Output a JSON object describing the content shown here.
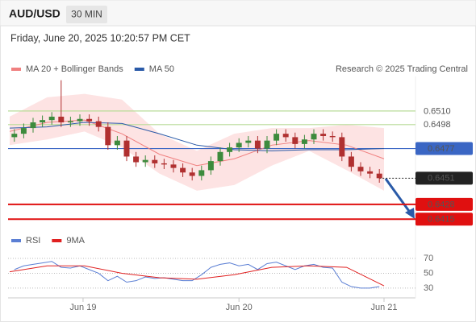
{
  "header": {
    "symbol": "AUD/USD",
    "interval": "30 MIN",
    "timestamp": "Friday, June 20, 2025 10:20:57 PM CET"
  },
  "chart_data": [
    {
      "type": "candlestick",
      "credit": "Research © 2025 Trading Central",
      "xlim": [
        0,
        40
      ],
      "ylim": [
        0.6406,
        0.6541
      ],
      "up_color": "#3d8b3d",
      "down_color": "#b03030",
      "candles": {
        "open": [
          0.6487,
          0.649,
          0.6495,
          0.65,
          0.6502,
          0.6505,
          0.65,
          0.6501,
          0.6503,
          0.6501,
          0.6496,
          0.648,
          0.6484,
          0.647,
          0.6465,
          0.6467,
          0.6464,
          0.6463,
          0.646,
          0.6456,
          0.6453,
          0.6458,
          0.6466,
          0.6474,
          0.6478,
          0.6482,
          0.6484,
          0.6477,
          0.6484,
          0.649,
          0.6487,
          0.6481,
          0.6485,
          0.649,
          0.6488,
          0.6487,
          0.647,
          0.6461,
          0.6457,
          0.6455
        ],
        "high": [
          0.6494,
          0.6499,
          0.6504,
          0.6506,
          0.6509,
          0.6537,
          0.6505,
          0.6507,
          0.6507,
          0.6505,
          0.65,
          0.6488,
          0.6488,
          0.6474,
          0.6471,
          0.6471,
          0.6468,
          0.6467,
          0.6464,
          0.646,
          0.6462,
          0.647,
          0.6478,
          0.6482,
          0.6486,
          0.6488,
          0.6488,
          0.6488,
          0.6494,
          0.6494,
          0.6491,
          0.6489,
          0.6494,
          0.6494,
          0.6492,
          0.6491,
          0.6474,
          0.6465,
          0.6461,
          0.6459
        ],
        "low": [
          0.6483,
          0.6486,
          0.6491,
          0.6496,
          0.6498,
          0.6496,
          0.6496,
          0.6497,
          0.6497,
          0.6492,
          0.6476,
          0.6476,
          0.6466,
          0.6461,
          0.6461,
          0.646,
          0.6459,
          0.6456,
          0.6452,
          0.6449,
          0.6449,
          0.6454,
          0.6462,
          0.647,
          0.6474,
          0.6478,
          0.6473,
          0.6473,
          0.648,
          0.6483,
          0.6477,
          0.6477,
          0.6481,
          0.6484,
          0.6483,
          0.6466,
          0.6457,
          0.6453,
          0.6451,
          0.6447
        ],
        "close": [
          0.649,
          0.6495,
          0.65,
          0.6502,
          0.6505,
          0.65,
          0.6501,
          0.6503,
          0.6501,
          0.6496,
          0.648,
          0.6484,
          0.647,
          0.6465,
          0.6467,
          0.6464,
          0.6463,
          0.646,
          0.6456,
          0.6453,
          0.6458,
          0.6466,
          0.6474,
          0.6478,
          0.6482,
          0.6484,
          0.6477,
          0.6484,
          0.649,
          0.6487,
          0.6481,
          0.6485,
          0.649,
          0.6488,
          0.6487,
          0.647,
          0.6461,
          0.6457,
          0.6455,
          0.6451
        ]
      },
      "line_x": [
        0,
        4,
        8,
        12,
        16,
        20,
        24,
        28,
        32,
        36,
        40
      ],
      "band": {
        "color": "#fde3e3",
        "upper": [
          0.6505,
          0.6522,
          0.6525,
          0.652,
          0.649,
          0.6475,
          0.649,
          0.6495,
          0.6495,
          0.6498,
          0.6495
        ],
        "lower": [
          0.648,
          0.6485,
          0.6492,
          0.6478,
          0.6455,
          0.644,
          0.6445,
          0.6462,
          0.6475,
          0.6458,
          0.644
        ]
      },
      "series": [
        {
          "name": "MA 20 + Bollinger Bands",
          "color": "#f08080",
          "values": [
            0.6492,
            0.65,
            0.6502,
            0.649,
            0.6472,
            0.6462,
            0.6468,
            0.648,
            0.6484,
            0.648,
            0.6468
          ]
        },
        {
          "name": "MA 50",
          "color": "#2a5aa8",
          "values": [
            0.6495,
            0.6496,
            0.65,
            0.6499,
            0.649,
            0.648,
            0.6476,
            0.6475,
            0.6476,
            0.6476,
            0.6477
          ]
        }
      ],
      "levels": [
        {
          "value": 0.651,
          "label": "0.6510",
          "color": "#b9dc98",
          "text_color": "#6aa84f",
          "boxed": false,
          "line": "full"
        },
        {
          "value": 0.6498,
          "label": "0.6498",
          "color": "#b9dc98",
          "text_color": "#6aa84f",
          "boxed": false,
          "line": "full"
        },
        {
          "value": 0.6477,
          "label": "0.6477",
          "color": "#3a66c4",
          "text_color": "#ffffff",
          "boxed": true,
          "line": "full"
        },
        {
          "value": 0.6451,
          "label": "0.6451",
          "color": "#222222",
          "text_color": "#ffffff",
          "boxed": true,
          "line": "dashed"
        },
        {
          "value": 0.6428,
          "label": "0.6428",
          "color": "#e01010",
          "text_color": "#ffffff",
          "boxed": true,
          "line": "full"
        },
        {
          "value": 0.6415,
          "label": "0.6415",
          "color": "#e01010",
          "text_color": "#ffffff",
          "boxed": true,
          "line": "full"
        }
      ]
    },
    {
      "type": "line",
      "xlim": [
        0,
        40
      ],
      "ylim": [
        19,
        82
      ],
      "yticks": [
        30,
        50,
        70
      ],
      "xticks": [
        {
          "value": 7.84,
          "label": "Jun 19"
        },
        {
          "value": 24.5,
          "label": "Jun 20"
        },
        {
          "value": 40,
          "label": "Jun 21"
        }
      ],
      "series": [
        {
          "name": "RSI",
          "color": "#5b7fd4",
          "values": [
            55,
            60,
            62,
            64,
            66,
            58,
            57,
            60,
            55,
            50,
            40,
            46,
            38,
            40,
            45,
            43,
            44,
            42,
            40,
            40,
            48,
            58,
            62,
            64,
            60,
            62,
            55,
            63,
            65,
            60,
            55,
            60,
            62,
            58,
            57,
            38,
            32,
            30,
            30,
            32
          ]
        },
        {
          "name": "9MA",
          "color": "#e02020",
          "x": [
            0,
            4,
            8,
            12,
            16,
            20,
            24,
            28,
            32,
            36,
            40
          ],
          "values": [
            52,
            60,
            60,
            50,
            44,
            42,
            48,
            58,
            60,
            58,
            33
          ]
        }
      ]
    }
  ]
}
